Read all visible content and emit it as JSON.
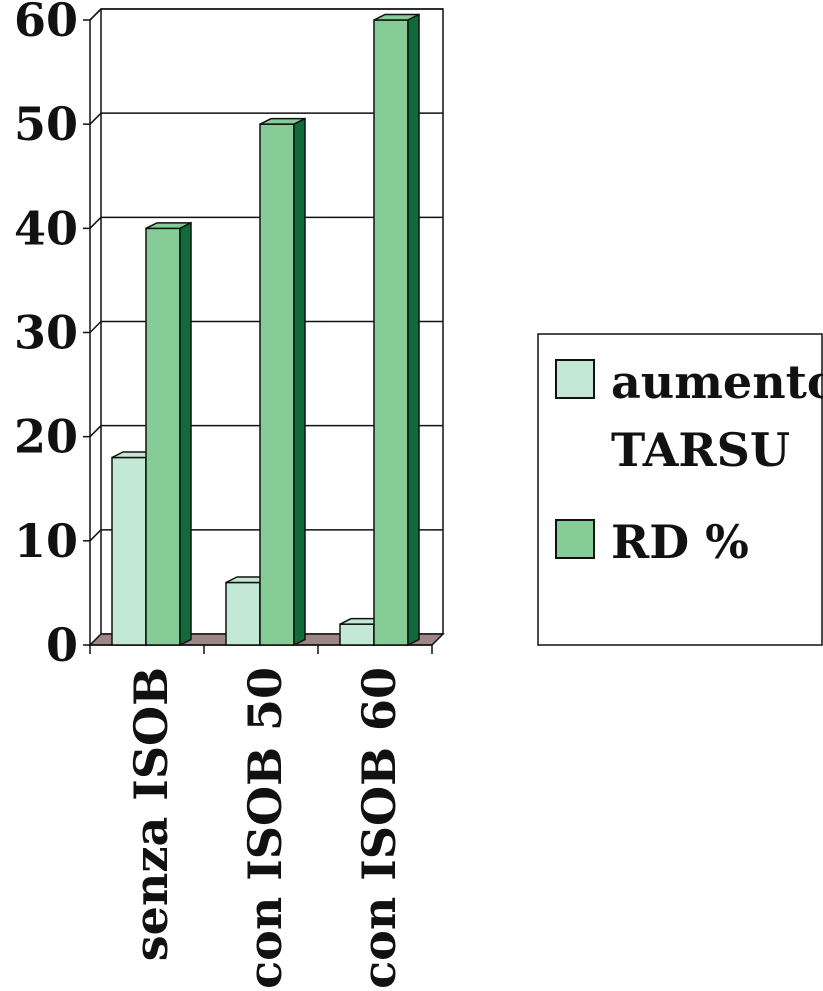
{
  "chart_data": {
    "type": "bar",
    "categories": [
      "senza ISOB",
      "con ISOB 50",
      "con ISOB 60"
    ],
    "series": [
      {
        "name": "aumento TARSU",
        "values": [
          18,
          6,
          2
        ],
        "color": "#c4e8d6",
        "side_color": "#2e8b57"
      },
      {
        "name": "RD %",
        "values": [
          40,
          50,
          60
        ],
        "color": "#85cc97",
        "side_color": "#0f6b3a"
      }
    ],
    "ylim": [
      0,
      60
    ],
    "yticks": [
      0,
      10,
      20,
      30,
      40,
      50,
      60
    ],
    "grid": true,
    "legend_position": "right",
    "floor_color": "#9e8686"
  },
  "legend": {
    "items": [
      {
        "lines": [
          "aumento",
          "TARSU"
        ]
      },
      {
        "lines": [
          "RD %"
        ]
      }
    ]
  }
}
